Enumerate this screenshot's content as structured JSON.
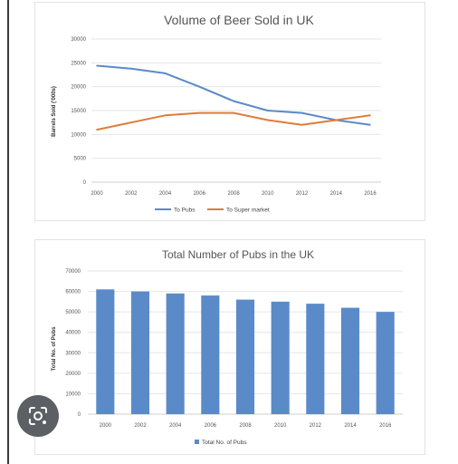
{
  "chart_data": [
    {
      "type": "line",
      "title": "Volume of Beer Sold in UK",
      "ylabel": "Barrels Sold ('000s)",
      "xlabel": "",
      "x": [
        "2000",
        "2002",
        "2004",
        "2006",
        "2008",
        "2010",
        "2012",
        "2014",
        "2016"
      ],
      "y_ticks": [
        "0",
        "5000",
        "10000",
        "15000",
        "20000",
        "25000",
        "30000"
      ],
      "ylim": [
        0,
        30000
      ],
      "grid": true,
      "legend_position": "bottom",
      "series": [
        {
          "name": "To Pubs",
          "color": "#5b8ac8",
          "values": [
            24400,
            23800,
            22800,
            20000,
            17000,
            15000,
            14500,
            13000,
            12000
          ]
        },
        {
          "name": "To Super market",
          "color": "#e07b39",
          "values": [
            11000,
            12500,
            14000,
            14500,
            14500,
            13000,
            12000,
            13000,
            14000
          ]
        }
      ]
    },
    {
      "type": "bar",
      "title": "Total Number of Pubs in the UK",
      "ylabel": "Total No. of Pubs",
      "xlabel": "",
      "categories": [
        "2000",
        "2002",
        "2004",
        "2006",
        "2008",
        "2010",
        "2012",
        "2014",
        "2016"
      ],
      "y_ticks": [
        "0",
        "10000",
        "20000",
        "30000",
        "40000",
        "50000",
        "60000",
        "70000"
      ],
      "ylim": [
        0,
        70000
      ],
      "grid": true,
      "legend_position": "bottom",
      "series": [
        {
          "name": "Total No. of Pubs",
          "color": "#5b8ac8",
          "values": [
            61000,
            60000,
            59000,
            58000,
            56000,
            55000,
            54000,
            52000,
            50000
          ]
        }
      ]
    }
  ],
  "lens_button": {
    "icon": "lens-icon",
    "color": "#5c5f63"
  }
}
